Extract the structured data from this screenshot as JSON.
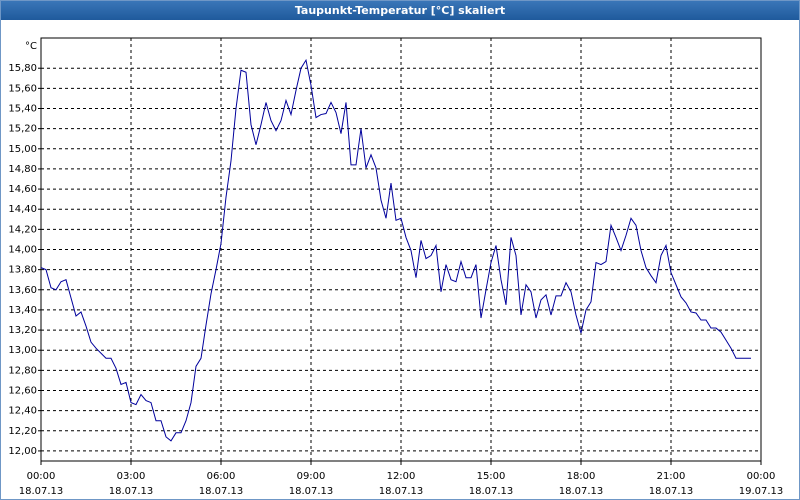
{
  "chart_data": {
    "type": "line",
    "title": "Taupunkt-Temperatur [°C] skaliert",
    "y_unit": "°C",
    "color": "#00009c",
    "grid": true,
    "x": [
      0,
      10,
      20,
      30,
      40,
      50,
      60,
      70,
      80,
      90,
      100,
      110,
      120,
      130,
      140,
      150,
      160,
      170,
      180,
      190,
      200,
      210,
      220,
      230,
      240,
      250,
      260,
      270,
      280,
      290,
      300,
      310,
      320,
      330,
      340,
      350,
      360,
      370,
      380,
      390,
      400,
      410,
      420,
      430,
      440,
      450,
      460,
      470,
      480,
      490,
      500,
      510,
      520,
      530,
      540,
      550,
      560,
      570,
      580,
      590,
      600,
      610,
      620,
      630,
      640,
      650,
      660,
      670,
      680,
      690,
      700,
      710,
      720,
      730,
      740,
      750,
      760,
      770,
      780,
      790,
      800,
      810,
      820,
      830,
      840,
      850,
      860,
      870,
      880,
      890,
      900,
      910,
      920,
      930,
      940,
      950,
      960,
      970,
      980,
      990,
      1000,
      1010,
      1020,
      1030,
      1040,
      1050,
      1060,
      1070,
      1080,
      1090,
      1100,
      1110,
      1120,
      1130,
      1140,
      1150,
      1160,
      1170,
      1180,
      1190,
      1200,
      1210,
      1220,
      1230,
      1240,
      1250,
      1260,
      1270,
      1280,
      1290,
      1300,
      1310,
      1320,
      1330,
      1340,
      1350,
      1360,
      1370,
      1380,
      1390,
      1400,
      1410,
      1420
    ],
    "values": [
      13.82,
      13.8,
      13.62,
      13.6,
      13.68,
      13.7,
      13.52,
      13.34,
      13.38,
      13.24,
      13.08,
      13.02,
      12.97,
      12.92,
      12.92,
      12.82,
      12.66,
      12.68,
      12.48,
      12.46,
      12.56,
      12.5,
      12.48,
      12.3,
      12.3,
      12.14,
      12.1,
      12.18,
      12.18,
      12.3,
      12.48,
      12.84,
      12.92,
      13.25,
      13.56,
      13.8,
      14.06,
      14.52,
      14.88,
      15.4,
      15.78,
      15.76,
      15.24,
      15.04,
      15.24,
      15.46,
      15.28,
      15.18,
      15.28,
      15.48,
      15.34,
      15.58,
      15.8,
      15.88,
      15.63,
      15.31,
      15.34,
      15.35,
      15.46,
      15.36,
      15.15,
      15.46,
      14.84,
      14.84,
      15.2,
      14.81,
      14.94,
      14.81,
      14.49,
      14.31,
      14.66,
      14.29,
      14.31,
      14.12,
      13.99,
      13.72,
      14.09,
      13.91,
      13.94,
      14.04,
      13.58,
      13.85,
      13.7,
      13.68,
      13.88,
      13.72,
      13.72,
      13.85,
      13.32,
      13.6,
      13.87,
      14.04,
      13.7,
      13.45,
      14.12,
      13.94,
      13.35,
      13.65,
      13.58,
      13.32,
      13.5,
      13.55,
      13.35,
      13.54,
      13.54,
      13.67,
      13.58,
      13.35,
      13.17,
      13.4,
      13.48,
      13.87,
      13.85,
      13.88,
      14.24,
      14.12,
      13.99,
      14.14,
      14.31,
      14.24,
      13.99,
      13.82,
      13.74,
      13.67,
      13.94,
      14.04,
      13.77,
      13.65,
      13.53,
      13.47,
      13.38,
      13.37,
      13.3,
      13.3,
      13.22,
      13.22,
      13.18,
      13.1,
      13.02,
      12.92,
      12.92,
      12.92,
      12.92
    ],
    "xlim": [
      0,
      1440
    ],
    "xticks": [
      {
        "value": 0,
        "label": "00:00"
      },
      {
        "value": 180,
        "label": "03:00"
      },
      {
        "value": 360,
        "label": "06:00"
      },
      {
        "value": 540,
        "label": "09:00"
      },
      {
        "value": 720,
        "label": "12:00"
      },
      {
        "value": 900,
        "label": "15:00"
      },
      {
        "value": 1080,
        "label": "18:00"
      },
      {
        "value": 1260,
        "label": "21:00"
      },
      {
        "value": 1440,
        "label": "00:00"
      }
    ],
    "xtick_dates": [
      "18.07.13",
      "18.07.13",
      "18.07.13",
      "18.07.13",
      "18.07.13",
      "18.07.13",
      "18.07.13",
      "18.07.13",
      "19.07.13"
    ],
    "ylim": [
      11.9,
      16.1
    ],
    "yticks": [
      {
        "value": 12,
        "label": "12,00"
      },
      {
        "value": 12.2,
        "label": "12,20"
      },
      {
        "value": 12.4,
        "label": "12,40"
      },
      {
        "value": 12.6,
        "label": "12,60"
      },
      {
        "value": 12.8,
        "label": "12,80"
      },
      {
        "value": 13,
        "label": "13,00"
      },
      {
        "value": 13.2,
        "label": "13,20"
      },
      {
        "value": 13.4,
        "label": "13,40"
      },
      {
        "value": 13.6,
        "label": "13,60"
      },
      {
        "value": 13.8,
        "label": "13,80"
      },
      {
        "value": 14,
        "label": "14,00"
      },
      {
        "value": 14.2,
        "label": "14,20"
      },
      {
        "value": 14.4,
        "label": "14,40"
      },
      {
        "value": 14.6,
        "label": "14,60"
      },
      {
        "value": 14.8,
        "label": "14,80"
      },
      {
        "value": 15,
        "label": "15,00"
      },
      {
        "value": 15.2,
        "label": "15,20"
      },
      {
        "value": 15.4,
        "label": "15,40"
      },
      {
        "value": 15.6,
        "label": "15,60"
      },
      {
        "value": 15.8,
        "label": "15,80"
      }
    ]
  }
}
